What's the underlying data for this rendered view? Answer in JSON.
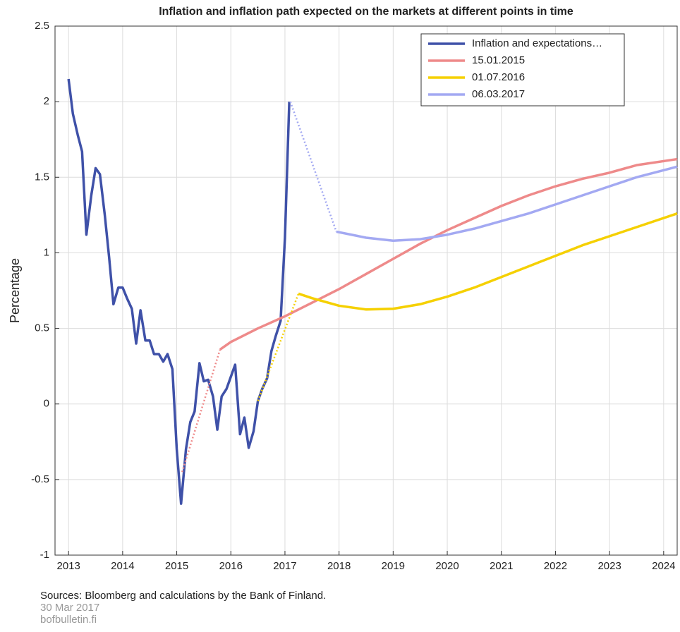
{
  "chart_data": {
    "type": "line",
    "title": "Inflation and inflation path expected on the markets at different points in time",
    "y_label": "Percentage",
    "xlim": [
      2012.75,
      2024.25
    ],
    "xticks": [
      2013,
      2014,
      2015,
      2016,
      2017,
      2018,
      2019,
      2020,
      2021,
      2022,
      2023,
      2024
    ],
    "ylim": [
      -1,
      2.5
    ],
    "yticks": [
      -1,
      -0.5,
      0,
      0.5,
      1,
      1.5,
      2,
      2.5
    ],
    "grid": true,
    "legend_position": "upper-right",
    "series": [
      {
        "name": "Inflation and expectations…",
        "color": "#3f51a8",
        "x": [
          2013.0,
          2013.08,
          2013.17,
          2013.25,
          2013.33,
          2013.42,
          2013.5,
          2013.58,
          2013.67,
          2013.75,
          2013.83,
          2013.92,
          2014.0,
          2014.08,
          2014.17,
          2014.25,
          2014.33,
          2014.42,
          2014.5,
          2014.58,
          2014.67,
          2014.75,
          2014.83,
          2014.92,
          2015.0,
          2015.08,
          2015.17,
          2015.25,
          2015.33,
          2015.42,
          2015.5,
          2015.58,
          2015.67,
          2015.75,
          2015.83,
          2015.92,
          2016.0,
          2016.08,
          2016.17,
          2016.25,
          2016.33,
          2016.42,
          2016.5,
          2016.58,
          2016.67,
          2016.75,
          2016.83,
          2016.92,
          2017.0,
          2017.08
        ],
        "values": [
          2.15,
          1.92,
          1.78,
          1.67,
          1.12,
          1.38,
          1.56,
          1.52,
          1.25,
          0.97,
          0.66,
          0.77,
          0.77,
          0.7,
          0.63,
          0.4,
          0.62,
          0.42,
          0.42,
          0.33,
          0.33,
          0.28,
          0.33,
          0.23,
          -0.3,
          -0.66,
          -0.3,
          -0.12,
          -0.05,
          0.27,
          0.15,
          0.16,
          0.05,
          -0.17,
          0.05,
          0.1,
          0.18,
          0.26,
          -0.2,
          -0.09,
          -0.29,
          -0.18,
          0.02,
          0.1,
          0.17,
          0.35,
          0.45,
          0.55,
          1.1,
          2.0
        ]
      },
      {
        "name": "15.01.2015",
        "color": "#ee8a8a",
        "x": [
          2015.1,
          2015.8,
          2016,
          2016.5,
          2017,
          2017.5,
          2018,
          2018.5,
          2019,
          2019.5,
          2020,
          2020.5,
          2021,
          2021.5,
          2022,
          2022.5,
          2023,
          2023.5,
          2024.25
        ],
        "values": [
          -0.45,
          0.36,
          0.41,
          0.5,
          0.58,
          0.67,
          0.76,
          0.86,
          0.96,
          1.06,
          1.15,
          1.23,
          1.31,
          1.38,
          1.44,
          1.49,
          1.53,
          1.58,
          1.62
        ]
      },
      {
        "name": "01.07.2016",
        "color": "#f5d000",
        "x": [
          2016.5,
          2017.25,
          2017.5,
          2018,
          2018.5,
          2019,
          2019.5,
          2020,
          2020.5,
          2021,
          2021.5,
          2022,
          2022.5,
          2023,
          2023.5,
          2024.25
        ],
        "values": [
          0.02,
          0.73,
          0.7,
          0.65,
          0.625,
          0.63,
          0.66,
          0.71,
          0.77,
          0.84,
          0.91,
          0.98,
          1.05,
          1.11,
          1.17,
          1.26
        ]
      },
      {
        "name": "06.03.2017",
        "color": "#a3a9f2",
        "x": [
          2017.1,
          2017.95,
          2018.5,
          2019,
          2019.5,
          2020,
          2020.5,
          2021,
          2021.5,
          2022,
          2022.5,
          2023,
          2023.5,
          2024.25
        ],
        "values": [
          2.0,
          1.14,
          1.1,
          1.08,
          1.09,
          1.12,
          1.16,
          1.21,
          1.26,
          1.32,
          1.38,
          1.44,
          1.5,
          1.57
        ]
      }
    ],
    "source": "Sources: Bloomberg and calculations by the Bank of Finland.",
    "date": "30 Mar 2017",
    "site": "bofbulletin.fi"
  }
}
